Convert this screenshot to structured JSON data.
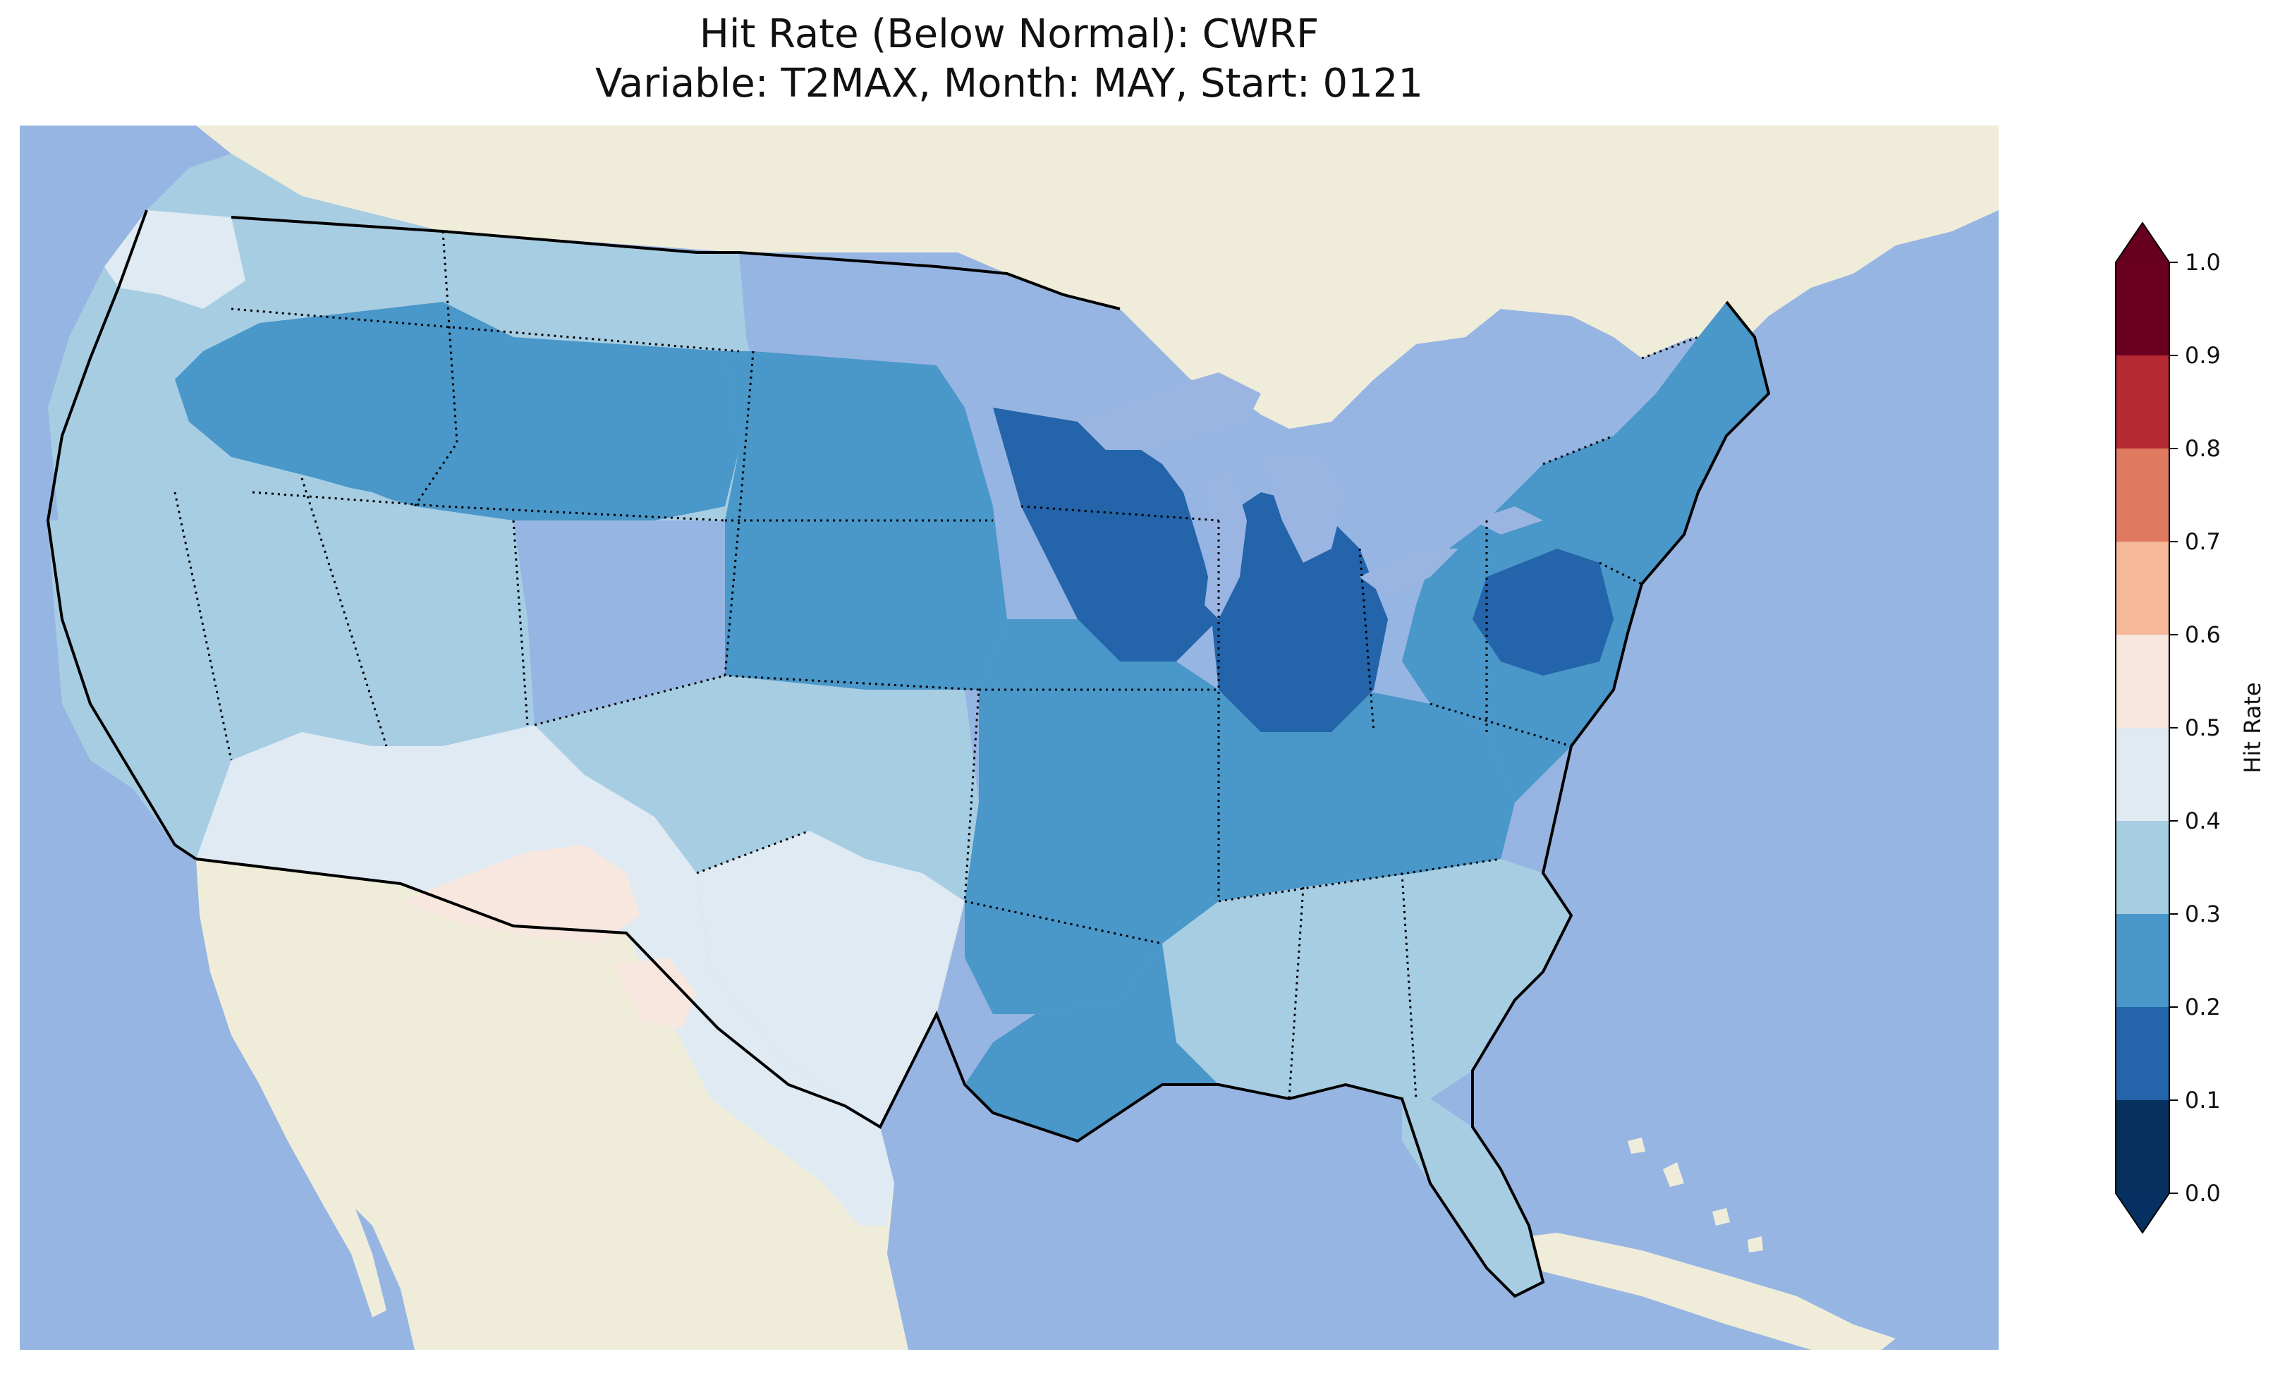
{
  "title": {
    "line1": "Hit Rate (Below Normal): CWRF",
    "line2": "Variable: T2MAX, Month: MAY, Start: 0121"
  },
  "map": {
    "ocean_color": "#97b5e2",
    "land_color": "#efedda",
    "lake_color": "#9bb5e3"
  },
  "colorbar": {
    "label": "Hit Rate",
    "ticks": [
      "0.0",
      "0.1",
      "0.2",
      "0.3",
      "0.4",
      "0.5",
      "0.6",
      "0.7",
      "0.8",
      "0.9",
      "1.0"
    ],
    "colors": [
      "#053061",
      "#2166ac",
      "#4393c3",
      "#92c5de",
      "#d1e5f0",
      "#f7f7f7",
      "#fddbc7",
      "#f4a582",
      "#d6604d",
      "#b2182b",
      "#67001f"
    ],
    "bins": [
      "#08305f",
      "#2364aa",
      "#4a97c9",
      "#a7cde3",
      "#dfeaf3",
      "#f8e7df",
      "#f5b899",
      "#df7a60",
      "#b62a33",
      "#6a0020"
    ],
    "extend": "both"
  },
  "regions": [
    {
      "name": "northwest-coast",
      "value": 0.45
    },
    {
      "name": "pacific-northwest",
      "value": 0.35
    },
    {
      "name": "northern-rockies",
      "value": 0.25
    },
    {
      "name": "great-basin",
      "value": 0.35
    },
    {
      "name": "southwest-desert",
      "value": 0.45
    },
    {
      "name": "arizona-new-mexico-border",
      "value": 0.55
    },
    {
      "name": "west-texas",
      "value": 0.55
    },
    {
      "name": "texas",
      "value": 0.45
    },
    {
      "name": "southern-plains",
      "value": 0.35
    },
    {
      "name": "central-plains",
      "value": 0.25
    },
    {
      "name": "upper-midwest",
      "value": 0.15
    },
    {
      "name": "great-lakes-states",
      "value": 0.15
    },
    {
      "name": "midwest",
      "value": 0.25
    },
    {
      "name": "southeast",
      "value": 0.35
    },
    {
      "name": "gulf-coast",
      "value": 0.25
    },
    {
      "name": "northeast",
      "value": 0.25
    },
    {
      "name": "pennsylvania",
      "value": 0.15
    },
    {
      "name": "florida",
      "value": 0.35
    }
  ]
}
